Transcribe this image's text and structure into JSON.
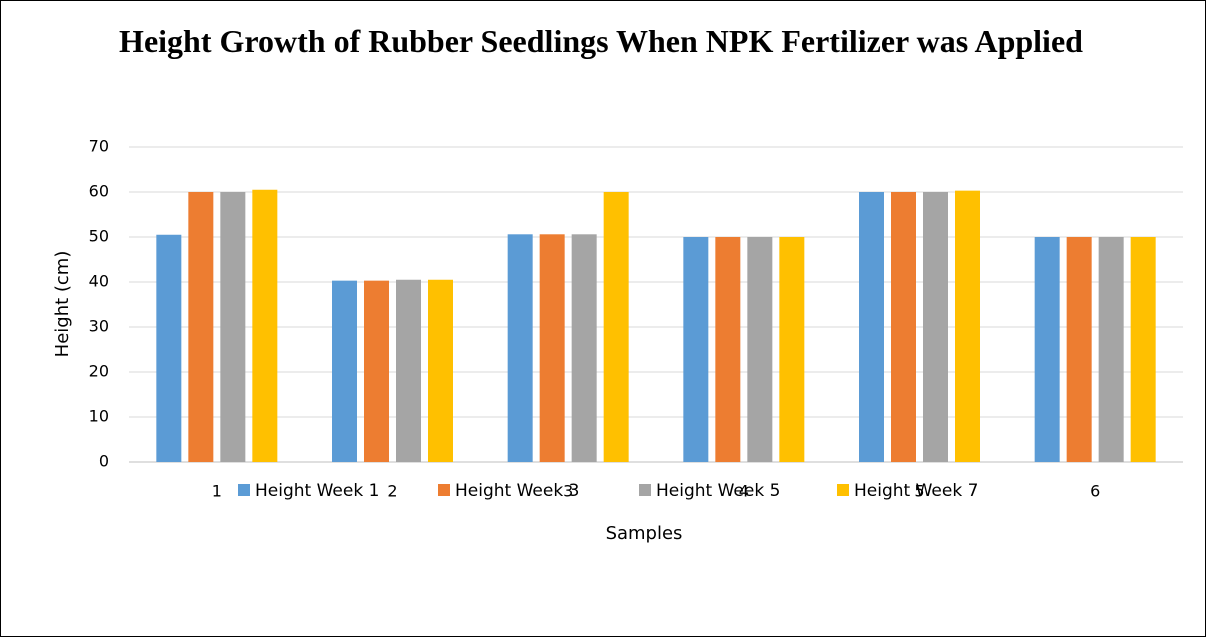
{
  "chart_data": {
    "type": "bar",
    "title": "Height Growth of Rubber Seedlings When NPK Fertilizer was Applied",
    "x_label": "Samples",
    "y_label": "Height (cm)",
    "categories": [
      "1",
      "2",
      "3",
      "4",
      "5",
      "6"
    ],
    "series": [
      {
        "name": "Height Week 1",
        "color": "#5b9bd5",
        "values": [
          50.5,
          40.3,
          50.6,
          50,
          60,
          50
        ]
      },
      {
        "name": "Height Week 3",
        "color": "#ed7d31",
        "values": [
          60,
          40.3,
          50.6,
          50,
          60,
          50
        ]
      },
      {
        "name": "Height Week 5",
        "color": "#a5a5a5",
        "values": [
          60,
          40.5,
          50.6,
          50,
          60,
          50
        ]
      },
      {
        "name": "Height Week 7",
        "color": "#ffc000",
        "values": [
          60.5,
          40.5,
          60,
          50,
          60.3,
          50
        ]
      }
    ],
    "ylim": [
      0,
      70
    ],
    "yticks": [
      0,
      10,
      20,
      30,
      40,
      50,
      60,
      70
    ],
    "grid": true,
    "legend": "bottom"
  }
}
